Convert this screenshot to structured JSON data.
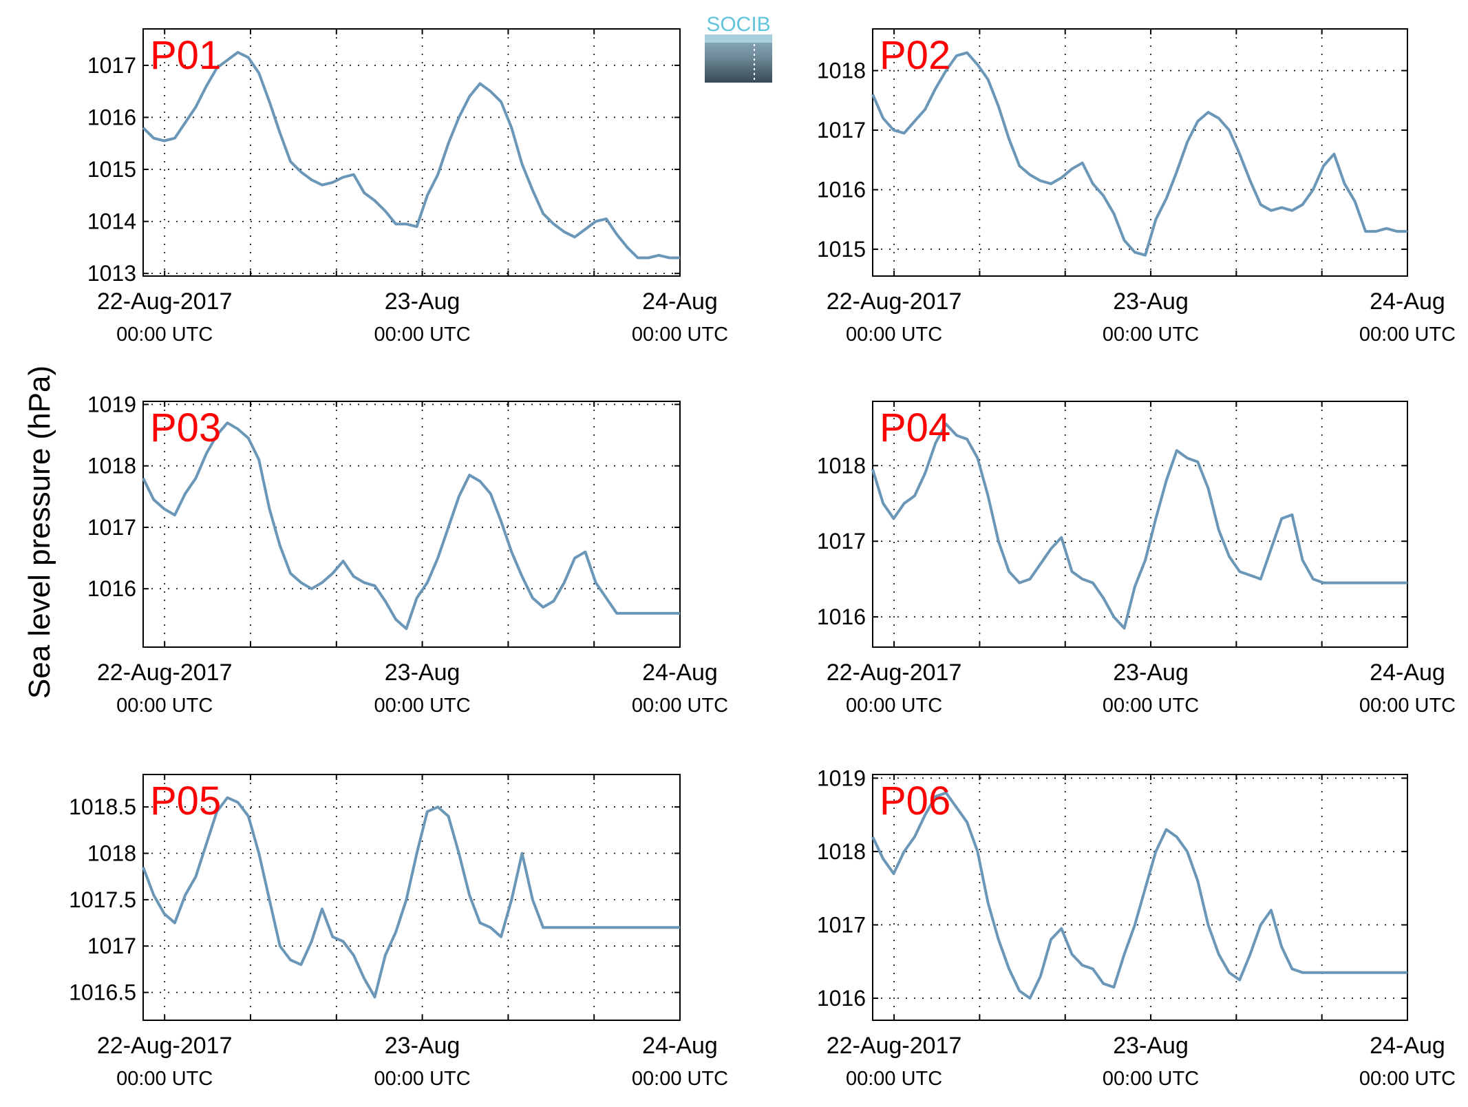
{
  "figure": {
    "ylabel": "Sea level pressure (hPa)",
    "logo_text": "SOCIB",
    "line_color": "#6a96b8",
    "label_color": "#ff0000"
  },
  "chart_data": [
    {
      "type": "line",
      "panel_label": "P01",
      "x_ticks": [
        {
          "date": "22-Aug-2017",
          "time": "00:00 UTC"
        },
        {
          "date": "23-Aug",
          "time": "00:00 UTC"
        },
        {
          "date": "24-Aug",
          "time": "00:00 UTC"
        }
      ],
      "xlim": [
        "21-Aug-2017 21:00",
        "24-Aug-2017 00:00"
      ],
      "y_ticks": [
        "1013",
        "1014",
        "1015",
        "1016",
        "1017"
      ],
      "y_tick_values": [
        1013,
        1014,
        1015,
        1016,
        1017
      ],
      "ylim": [
        1012.95,
        1017.7
      ],
      "grid": true,
      "series": [
        {
          "x": [
            "21:00",
            "22:00",
            "23:00",
            "00:00",
            "01:00",
            "02:00",
            "03:00",
            "04:00",
            "05:00",
            "06:00",
            "07:00",
            "08:00",
            "09:00",
            "10:00",
            "11:00",
            "12:00",
            "13:00",
            "14:00",
            "15:00",
            "16:00",
            "17:00",
            "18:00",
            "19:00",
            "20:00",
            "21:00",
            "22:00",
            "23:00",
            "00:00",
            "01:00",
            "02:00",
            "03:00",
            "04:00",
            "05:00",
            "06:00",
            "07:00",
            "08:00",
            "09:00",
            "10:00",
            "11:00",
            "12:00",
            "13:00",
            "14:00",
            "15:00",
            "16:00",
            "17:00",
            "18:00",
            "19:00",
            "20:00",
            "21:00",
            "22:00",
            "23:00",
            "00:00"
          ],
          "values": [
            1015.8,
            1015.6,
            1015.55,
            1015.6,
            1015.9,
            1016.2,
            1016.6,
            1016.95,
            1017.1,
            1017.25,
            1017.15,
            1016.85,
            1016.3,
            1015.7,
            1015.15,
            1014.95,
            1014.8,
            1014.7,
            1014.75,
            1014.85,
            1014.9,
            1014.55,
            1014.4,
            1014.2,
            1013.95,
            1013.95,
            1013.9,
            1014.5,
            1014.9,
            1015.5,
            1016.0,
            1016.4,
            1016.65,
            1016.5,
            1016.3,
            1015.8,
            1015.1,
            1014.6,
            1014.15,
            1013.95,
            1013.8,
            1013.7,
            1013.85,
            1014.0,
            1014.05,
            1013.75,
            1013.5,
            1013.3,
            1013.3,
            1013.35,
            1013.3,
            1013.3
          ]
        }
      ]
    },
    {
      "type": "line",
      "panel_label": "P02",
      "x_ticks": [
        {
          "date": "22-Aug-2017",
          "time": "00:00 UTC"
        },
        {
          "date": "23-Aug",
          "time": "00:00 UTC"
        },
        {
          "date": "24-Aug",
          "time": "00:00 UTC"
        }
      ],
      "xlim": [
        "21-Aug-2017 21:00",
        "24-Aug-2017 00:00"
      ],
      "y_ticks": [
        "1015",
        "1016",
        "1017",
        "1018"
      ],
      "y_tick_values": [
        1015,
        1016,
        1017,
        1018
      ],
      "ylim": [
        1014.55,
        1018.7
      ],
      "grid": true,
      "series": [
        {
          "x": [
            "21:00",
            "22:00",
            "23:00",
            "00:00",
            "01:00",
            "02:00",
            "03:00",
            "04:00",
            "05:00",
            "06:00",
            "07:00",
            "08:00",
            "09:00",
            "10:00",
            "11:00",
            "12:00",
            "13:00",
            "14:00",
            "15:00",
            "16:00",
            "17:00",
            "18:00",
            "19:00",
            "20:00",
            "21:00",
            "22:00",
            "23:00",
            "00:00",
            "01:00",
            "02:00",
            "03:00",
            "04:00",
            "05:00",
            "06:00",
            "07:00",
            "08:00",
            "09:00",
            "10:00",
            "11:00",
            "12:00",
            "13:00",
            "14:00",
            "15:00",
            "16:00",
            "17:00",
            "18:00",
            "19:00",
            "20:00",
            "21:00",
            "22:00",
            "23:00",
            "00:00"
          ],
          "values": [
            1017.6,
            1017.2,
            1017.0,
            1016.95,
            1017.15,
            1017.35,
            1017.7,
            1018.0,
            1018.25,
            1018.3,
            1018.1,
            1017.85,
            1017.4,
            1016.85,
            1016.4,
            1016.25,
            1016.15,
            1016.1,
            1016.2,
            1016.35,
            1016.45,
            1016.1,
            1015.9,
            1015.6,
            1015.15,
            1014.95,
            1014.9,
            1015.5,
            1015.85,
            1016.3,
            1016.8,
            1017.15,
            1017.3,
            1017.2,
            1017.0,
            1016.6,
            1016.15,
            1015.75,
            1015.65,
            1015.7,
            1015.65,
            1015.75,
            1016.0,
            1016.4,
            1016.6,
            1016.1,
            1015.8,
            1015.3,
            1015.3,
            1015.35,
            1015.3,
            1015.3
          ]
        }
      ]
    },
    {
      "type": "line",
      "panel_label": "P03",
      "x_ticks": [
        {
          "date": "22-Aug-2017",
          "time": "00:00 UTC"
        },
        {
          "date": "23-Aug",
          "time": "00:00 UTC"
        },
        {
          "date": "24-Aug",
          "time": "00:00 UTC"
        }
      ],
      "xlim": [
        "21-Aug-2017 21:00",
        "24-Aug-2017 00:00"
      ],
      "y_ticks": [
        "1016",
        "1017",
        "1018",
        "1019"
      ],
      "y_tick_values": [
        1016,
        1017,
        1018,
        1019
      ],
      "ylim": [
        1015.05,
        1019.05
      ],
      "grid": true,
      "series": [
        {
          "x": [
            "21:00",
            "22:00",
            "23:00",
            "00:00",
            "01:00",
            "02:00",
            "03:00",
            "04:00",
            "05:00",
            "06:00",
            "07:00",
            "08:00",
            "09:00",
            "10:00",
            "11:00",
            "12:00",
            "13:00",
            "14:00",
            "15:00",
            "16:00",
            "17:00",
            "18:00",
            "19:00",
            "20:00",
            "21:00",
            "22:00",
            "23:00",
            "00:00",
            "01:00",
            "02:00",
            "03:00",
            "04:00",
            "05:00",
            "06:00",
            "07:00",
            "08:00",
            "09:00",
            "10:00",
            "11:00",
            "12:00",
            "13:00",
            "14:00",
            "15:00",
            "16:00",
            "17:00",
            "18:00",
            "19:00",
            "20:00",
            "21:00",
            "22:00",
            "23:00",
            "00:00"
          ],
          "values": [
            1017.8,
            1017.45,
            1017.3,
            1017.2,
            1017.55,
            1017.8,
            1018.2,
            1018.5,
            1018.7,
            1018.6,
            1018.45,
            1018.1,
            1017.3,
            1016.7,
            1016.25,
            1016.1,
            1016.0,
            1016.1,
            1016.25,
            1016.45,
            1016.2,
            1016.1,
            1016.05,
            1015.8,
            1015.5,
            1015.35,
            1015.85,
            1016.1,
            1016.5,
            1017.0,
            1017.5,
            1017.85,
            1017.75,
            1017.55,
            1017.1,
            1016.6,
            1016.2,
            1015.85,
            1015.7,
            1015.8,
            1016.1,
            1016.5,
            1016.6,
            1016.1,
            1015.85,
            1015.6,
            1015.6,
            1015.6,
            1015.6,
            1015.6,
            1015.6,
            1015.6
          ]
        }
      ]
    },
    {
      "type": "line",
      "panel_label": "P04",
      "x_ticks": [
        {
          "date": "22-Aug-2017",
          "time": "00:00 UTC"
        },
        {
          "date": "23-Aug",
          "time": "00:00 UTC"
        },
        {
          "date": "24-Aug",
          "time": "00:00 UTC"
        }
      ],
      "xlim": [
        "21-Aug-2017 21:00",
        "24-Aug-2017 00:00"
      ],
      "y_ticks": [
        "1016",
        "1017",
        "1018"
      ],
      "y_tick_values": [
        1016,
        1017,
        1018
      ],
      "ylim": [
        1015.6,
        1018.85
      ],
      "grid": true,
      "series": [
        {
          "x": [
            "21:00",
            "22:00",
            "23:00",
            "00:00",
            "01:00",
            "02:00",
            "03:00",
            "04:00",
            "05:00",
            "06:00",
            "07:00",
            "08:00",
            "09:00",
            "10:00",
            "11:00",
            "12:00",
            "13:00",
            "14:00",
            "15:00",
            "16:00",
            "17:00",
            "18:00",
            "19:00",
            "20:00",
            "21:00",
            "22:00",
            "23:00",
            "00:00",
            "01:00",
            "02:00",
            "03:00",
            "04:00",
            "05:00",
            "06:00",
            "07:00",
            "08:00",
            "09:00",
            "10:00",
            "11:00",
            "12:00",
            "13:00",
            "14:00",
            "15:00",
            "16:00",
            "17:00",
            "18:00",
            "19:00",
            "20:00",
            "21:00",
            "22:00",
            "23:00",
            "00:00"
          ],
          "values": [
            1017.95,
            1017.5,
            1017.3,
            1017.5,
            1017.6,
            1017.9,
            1018.3,
            1018.55,
            1018.4,
            1018.35,
            1018.1,
            1017.6,
            1017.0,
            1016.6,
            1016.45,
            1016.5,
            1016.7,
            1016.9,
            1017.05,
            1016.6,
            1016.5,
            1016.45,
            1016.25,
            1016.0,
            1015.85,
            1016.4,
            1016.75,
            1017.3,
            1017.8,
            1018.2,
            1018.1,
            1018.05,
            1017.7,
            1017.15,
            1016.8,
            1016.6,
            1016.55,
            1016.5,
            1016.9,
            1017.3,
            1017.35,
            1016.75,
            1016.5,
            1016.45,
            1016.45,
            1016.45,
            1016.45,
            1016.45,
            1016.45,
            1016.45,
            1016.45,
            1016.45
          ]
        }
      ]
    },
    {
      "type": "line",
      "panel_label": "P05",
      "x_ticks": [
        {
          "date": "22-Aug-2017",
          "time": "00:00 UTC"
        },
        {
          "date": "23-Aug",
          "time": "00:00 UTC"
        },
        {
          "date": "24-Aug",
          "time": "00:00 UTC"
        }
      ],
      "xlim": [
        "21-Aug-2017 21:00",
        "24-Aug-2017 00:00"
      ],
      "y_ticks": [
        "1016.5",
        "1017",
        "1017.5",
        "1018",
        "1018.5"
      ],
      "y_tick_values": [
        1016.5,
        1017.0,
        1017.5,
        1018.0,
        1018.5
      ],
      "ylim": [
        1016.2,
        1018.85
      ],
      "grid": true,
      "series": [
        {
          "x": [
            "21:00",
            "22:00",
            "23:00",
            "00:00",
            "01:00",
            "02:00",
            "03:00",
            "04:00",
            "05:00",
            "06:00",
            "07:00",
            "08:00",
            "09:00",
            "10:00",
            "11:00",
            "12:00",
            "13:00",
            "14:00",
            "15:00",
            "16:00",
            "17:00",
            "18:00",
            "19:00",
            "20:00",
            "21:00",
            "22:00",
            "23:00",
            "00:00",
            "01:00",
            "02:00",
            "03:00",
            "04:00",
            "05:00",
            "06:00",
            "07:00",
            "08:00",
            "09:00",
            "10:00",
            "11:00",
            "12:00",
            "13:00",
            "14:00",
            "15:00",
            "16:00",
            "17:00",
            "18:00",
            "19:00",
            "20:00",
            "21:00",
            "22:00",
            "23:00",
            "00:00"
          ],
          "values": [
            1017.85,
            1017.55,
            1017.35,
            1017.25,
            1017.55,
            1017.75,
            1018.1,
            1018.45,
            1018.6,
            1018.55,
            1018.4,
            1018.0,
            1017.5,
            1017.0,
            1016.85,
            1016.8,
            1017.05,
            1017.4,
            1017.1,
            1017.05,
            1016.9,
            1016.65,
            1016.45,
            1016.9,
            1017.15,
            1017.5,
            1018.0,
            1018.45,
            1018.5,
            1018.4,
            1018.0,
            1017.55,
            1017.25,
            1017.2,
            1017.1,
            1017.5,
            1018.0,
            1017.5,
            1017.2,
            1017.2,
            1017.2,
            1017.2,
            1017.2,
            1017.2,
            1017.2,
            1017.2,
            1017.2,
            1017.2,
            1017.2,
            1017.2,
            1017.2,
            1017.2
          ]
        }
      ]
    },
    {
      "type": "line",
      "panel_label": "P06",
      "x_ticks": [
        {
          "date": "22-Aug-2017",
          "time": "00:00 UTC"
        },
        {
          "date": "23-Aug",
          "time": "00:00 UTC"
        },
        {
          "date": "24-Aug",
          "time": "00:00 UTC"
        }
      ],
      "xlim": [
        "21-Aug-2017 21:00",
        "24-Aug-2017 00:00"
      ],
      "y_ticks": [
        "1016",
        "1017",
        "1018",
        "1019"
      ],
      "y_tick_values": [
        1016,
        1017,
        1018,
        1019
      ],
      "ylim": [
        1015.7,
        1019.05
      ],
      "grid": true,
      "series": [
        {
          "x": [
            "21:00",
            "22:00",
            "23:00",
            "00:00",
            "01:00",
            "02:00",
            "03:00",
            "04:00",
            "05:00",
            "06:00",
            "07:00",
            "08:00",
            "09:00",
            "10:00",
            "11:00",
            "12:00",
            "13:00",
            "14:00",
            "15:00",
            "16:00",
            "17:00",
            "18:00",
            "19:00",
            "20:00",
            "21:00",
            "22:00",
            "23:00",
            "00:00",
            "01:00",
            "02:00",
            "03:00",
            "04:00",
            "05:00",
            "06:00",
            "07:00",
            "08:00",
            "09:00",
            "10:00",
            "11:00",
            "12:00",
            "13:00",
            "14:00",
            "15:00",
            "16:00",
            "17:00",
            "18:00",
            "19:00",
            "20:00",
            "21:00",
            "22:00",
            "23:00",
            "00:00"
          ],
          "values": [
            1018.2,
            1017.9,
            1017.7,
            1018.0,
            1018.2,
            1018.5,
            1018.75,
            1018.8,
            1018.6,
            1018.4,
            1018.0,
            1017.3,
            1016.8,
            1016.4,
            1016.1,
            1016.0,
            1016.3,
            1016.8,
            1016.95,
            1016.6,
            1016.45,
            1016.4,
            1016.2,
            1016.15,
            1016.6,
            1017.0,
            1017.5,
            1018.0,
            1018.3,
            1018.2,
            1018.0,
            1017.6,
            1017.0,
            1016.6,
            1016.35,
            1016.25,
            1016.6,
            1017.0,
            1017.2,
            1016.7,
            1016.4,
            1016.35,
            1016.35,
            1016.35,
            1016.35,
            1016.35,
            1016.35,
            1016.35,
            1016.35,
            1016.35,
            1016.35,
            1016.35
          ]
        }
      ]
    }
  ]
}
